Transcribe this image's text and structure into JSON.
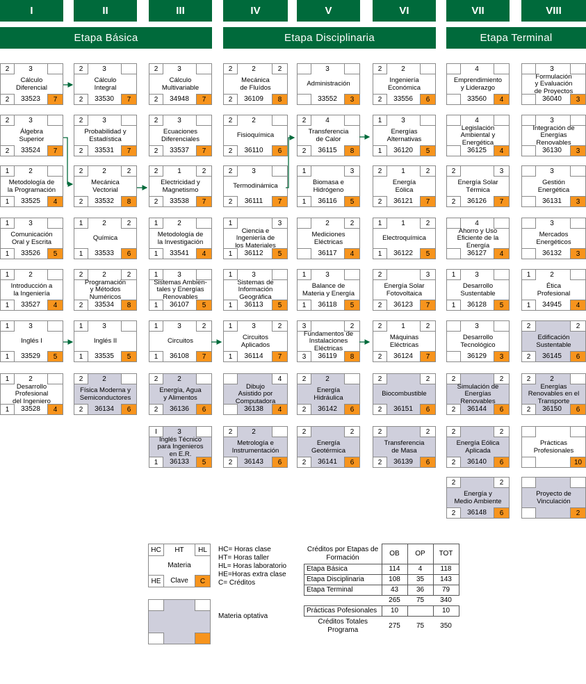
{
  "semesters": [
    "I",
    "II",
    "III",
    "IV",
    "V",
    "VI",
    "VII",
    "VIII"
  ],
  "stages": [
    "Etapa Básica",
    "Etapa Disciplinaria",
    "Etapa Terminal"
  ],
  "courses": [
    {
      "col": 0,
      "row": 0,
      "hc": "2",
      "ht": "3",
      "hl": "",
      "he": "2",
      "key": "33523",
      "cr": "7",
      "name": "Cálculo\nDiferencial",
      "opt": false
    },
    {
      "col": 0,
      "row": 1,
      "hc": "2",
      "ht": "3",
      "hl": "",
      "he": "2",
      "key": "33524",
      "cr": "7",
      "name": "Álgebra\nSuperior",
      "opt": false
    },
    {
      "col": 0,
      "row": 2,
      "hc": "1",
      "ht": "2",
      "hl": "",
      "he": "1",
      "key": "33525",
      "cr": "4",
      "name": "Metodología de\nla Programación",
      "opt": false
    },
    {
      "col": 0,
      "row": 3,
      "hc": "1",
      "ht": "3",
      "hl": "",
      "he": "1",
      "key": "33526",
      "cr": "5",
      "name": "Comunicación\nOral y Escrita",
      "opt": false
    },
    {
      "col": 0,
      "row": 4,
      "hc": "1",
      "ht": "2",
      "hl": "",
      "he": "1",
      "key": "33527",
      "cr": "4",
      "name": "Introducción a\nla Ingeniería",
      "opt": false
    },
    {
      "col": 0,
      "row": 5,
      "hc": "1",
      "ht": "3",
      "hl": "",
      "he": "1",
      "key": "33529",
      "cr": "5",
      "name": "Inglés I",
      "opt": false
    },
    {
      "col": 0,
      "row": 6,
      "hc": "1",
      "ht": "2",
      "hl": "",
      "he": "1",
      "key": "33528",
      "cr": "4",
      "name": "Desarrollo\nProfesional\ndel Ingeniero",
      "opt": false
    },
    {
      "col": 1,
      "row": 0,
      "hc": "2",
      "ht": "3",
      "hl": "",
      "he": "2",
      "key": "33530",
      "cr": "7",
      "name": "Cálculo\nIntegral",
      "opt": false
    },
    {
      "col": 1,
      "row": 1,
      "hc": "2",
      "ht": "3",
      "hl": "",
      "he": "2",
      "key": "33531",
      "cr": "7",
      "name": "Probabilidad y\nEstadística",
      "opt": false
    },
    {
      "col": 1,
      "row": 2,
      "hc": "2",
      "ht": "2",
      "hl": "2",
      "he": "2",
      "key": "33532",
      "cr": "8",
      "name": "Mecánica\nVectorial",
      "opt": false
    },
    {
      "col": 1,
      "row": 3,
      "hc": "1",
      "ht": "2",
      "hl": "2",
      "he": "1",
      "key": "33533",
      "cr": "6",
      "name": "Química",
      "opt": false
    },
    {
      "col": 1,
      "row": 4,
      "hc": "2",
      "ht": "2",
      "hl": "2",
      "he": "2",
      "key": "33534",
      "cr": "8",
      "name": "Programación\ny Métodos\nNuméricos",
      "opt": false
    },
    {
      "col": 1,
      "row": 5,
      "hc": "1",
      "ht": "3",
      "hl": "",
      "he": "1",
      "key": "33535",
      "cr": "5",
      "name": "Inglés II",
      "opt": false
    },
    {
      "col": 1,
      "row": 6,
      "hc": "2",
      "ht": "2",
      "hl": "",
      "he": "2",
      "key": "36134",
      "cr": "6",
      "name": "Física Moderna y\nSemiconductores",
      "opt": true
    },
    {
      "col": 2,
      "row": 0,
      "hc": "2",
      "ht": "3",
      "hl": "",
      "he": "2",
      "key": "34948",
      "cr": "7",
      "name": "Cálculo\nMultivariable",
      "opt": false
    },
    {
      "col": 2,
      "row": 1,
      "hc": "2",
      "ht": "3",
      "hl": "",
      "he": "2",
      "key": "33537",
      "cr": "7",
      "name": "Ecuaciones\nDiferenciales",
      "opt": false
    },
    {
      "col": 2,
      "row": 2,
      "hc": "2",
      "ht": "1",
      "hl": "2",
      "he": "2",
      "key": "33538",
      "cr": "7",
      "name": "Electricidad y\nMagnetismo",
      "opt": false
    },
    {
      "col": 2,
      "row": 3,
      "hc": "1",
      "ht": "2",
      "hl": "",
      "he": "1",
      "key": "33541",
      "cr": "4",
      "name": "Metodología de\nla Investigación",
      "opt": false
    },
    {
      "col": 2,
      "row": 4,
      "hc": "1",
      "ht": "3",
      "hl": "",
      "he": "1",
      "key": "36107",
      "cr": "5",
      "name": "Sistemas Ambien-\ntales y Energías\nRenovables",
      "opt": false
    },
    {
      "col": 2,
      "row": 5,
      "hc": "1",
      "ht": "3",
      "hl": "2",
      "he": "1",
      "key": "36108",
      "cr": "7",
      "name": "Circuitos",
      "opt": false
    },
    {
      "col": 2,
      "row": 6,
      "hc": "2",
      "ht": "2",
      "hl": "",
      "he": "2",
      "key": "36136",
      "cr": "6",
      "name": "Energía, Agua\ny Alimentos",
      "opt": true
    },
    {
      "col": 2,
      "row": 7,
      "hc": "I",
      "ht": "3",
      "hl": "",
      "he": "1",
      "key": "36133",
      "cr": "5",
      "name": "Inglés Técnico\npara Ingenieros\nen E.R.",
      "opt": true
    },
    {
      "col": 3,
      "row": 0,
      "hc": "2",
      "ht": "2",
      "hl": "2",
      "he": "2",
      "key": "36109",
      "cr": "8",
      "name": "Mecánica\nde Fluídos",
      "opt": false
    },
    {
      "col": 3,
      "row": 1,
      "hc": "2",
      "ht": "2",
      "hl": "",
      "he": "2",
      "key": "36110",
      "cr": "6",
      "name": "Fisioquímica",
      "opt": false
    },
    {
      "col": 3,
      "row": 2,
      "hc": "2",
      "ht": "3",
      "hl": "",
      "he": "2",
      "key": "36111",
      "cr": "7",
      "name": "Termodinámica",
      "opt": false
    },
    {
      "col": 3,
      "row": 3,
      "hc": "1",
      "ht": "",
      "hl": "3",
      "he": "1",
      "key": "36112",
      "cr": "5",
      "name": "Ciencia e\nIngeniería de\nlos Materiales",
      "opt": false
    },
    {
      "col": 3,
      "row": 4,
      "hc": "1",
      "ht": "3",
      "hl": "",
      "he": "1",
      "key": "36113",
      "cr": "5",
      "name": "Sistemas de\nInformación\nGeográfica",
      "opt": false
    },
    {
      "col": 3,
      "row": 5,
      "hc": "1",
      "ht": "3",
      "hl": "2",
      "he": "1",
      "key": "36114",
      "cr": "7",
      "name": "Circuitos\nAplicados",
      "opt": false
    },
    {
      "col": 3,
      "row": 6,
      "hc": "",
      "ht": "",
      "hl": "4",
      "he": "",
      "key": "36138",
      "cr": "4",
      "name": "Dibujo\nAsistido por\nComputadora",
      "opt": true
    },
    {
      "col": 3,
      "row": 7,
      "hc": "2",
      "ht": "2",
      "hl": "",
      "he": "2",
      "key": "36143",
      "cr": "6",
      "name": "Metrología e\nInstrumentación",
      "opt": true
    },
    {
      "col": 4,
      "row": 0,
      "hc": "",
      "ht": "3",
      "hl": "",
      "he": "",
      "key": "33552",
      "cr": "3",
      "name": "Administración",
      "opt": false
    },
    {
      "col": 4,
      "row": 1,
      "hc": "2",
      "ht": "4",
      "hl": "",
      "he": "2",
      "key": "36115",
      "cr": "8",
      "name": "Transferencia\nde Calor",
      "opt": false
    },
    {
      "col": 4,
      "row": 2,
      "hc": "1",
      "ht": "",
      "hl": "3",
      "he": "1",
      "key": "36116",
      "cr": "5",
      "name": "Biomasa e\nHidrógeno",
      "opt": false
    },
    {
      "col": 4,
      "row": 3,
      "hc": "",
      "ht": "2",
      "hl": "2",
      "he": "",
      "key": "36117",
      "cr": "4",
      "name": "Mediciones\nEléctricas",
      "opt": false
    },
    {
      "col": 4,
      "row": 4,
      "hc": "1",
      "ht": "3",
      "hl": "",
      "he": "1",
      "key": "36118",
      "cr": "5",
      "name": "Balance de\nMateria y Energía",
      "opt": false
    },
    {
      "col": 4,
      "row": 5,
      "hc": "3",
      "ht": "",
      "hl": "2",
      "he": "3",
      "key": "36119",
      "cr": "8",
      "name": "Fundamentos de\nInstalaciones\nEléctricas",
      "opt": false
    },
    {
      "col": 4,
      "row": 6,
      "hc": "2",
      "ht": "2",
      "hl": "",
      "he": "2",
      "key": "36142",
      "cr": "6",
      "name": "Energía\nHidráulica",
      "opt": true
    },
    {
      "col": 4,
      "row": 7,
      "hc": "2",
      "ht": "",
      "hl": "2",
      "he": "2",
      "key": "36141",
      "cr": "6",
      "name": "Energía\nGeotérmica",
      "opt": true
    },
    {
      "col": 5,
      "row": 0,
      "hc": "2",
      "ht": "2",
      "hl": "",
      "he": "2",
      "key": "33556",
      "cr": "6",
      "name": "Ingeniería\nEconómica",
      "opt": false
    },
    {
      "col": 5,
      "row": 1,
      "hc": "1",
      "ht": "3",
      "hl": "",
      "he": "1",
      "key": "36120",
      "cr": "5",
      "name": "Energías\nAlternativas",
      "opt": false
    },
    {
      "col": 5,
      "row": 2,
      "hc": "2",
      "ht": "1",
      "hl": "2",
      "he": "2",
      "key": "36121",
      "cr": "7",
      "name": "Energía\nEólica",
      "opt": false
    },
    {
      "col": 5,
      "row": 3,
      "hc": "1",
      "ht": "1",
      "hl": "2",
      "he": "1",
      "key": "36122",
      "cr": "5",
      "name": "Electroquímica",
      "opt": false
    },
    {
      "col": 5,
      "row": 4,
      "hc": "2",
      "ht": "",
      "hl": "3",
      "he": "2",
      "key": "36123",
      "cr": "7",
      "name": "Energía Solar\nFotovoltaica",
      "opt": false
    },
    {
      "col": 5,
      "row": 5,
      "hc": "2",
      "ht": "1",
      "hl": "2",
      "he": "2",
      "key": "36124",
      "cr": "7",
      "name": "Máquinas\nEléctricas",
      "opt": false
    },
    {
      "col": 5,
      "row": 6,
      "hc": "2",
      "ht": "",
      "hl": "2",
      "he": "2",
      "key": "36151",
      "cr": "6",
      "name": "Biocombustible",
      "opt": true
    },
    {
      "col": 5,
      "row": 7,
      "hc": "2",
      "ht": "",
      "hl": "2",
      "he": "2",
      "key": "36139",
      "cr": "6",
      "name": "Transferencia\nde Masa",
      "opt": true
    },
    {
      "col": 6,
      "row": 0,
      "hc": "",
      "ht": "4",
      "hl": "",
      "he": "",
      "key": "33560",
      "cr": "4",
      "name": "Emprendimiento\ny Liderazgo",
      "opt": false
    },
    {
      "col": 6,
      "row": 1,
      "hc": "",
      "ht": "4",
      "hl": "",
      "he": "",
      "key": "36125",
      "cr": "4",
      "name": "Legislación\nAmbiental y\nEnergética",
      "opt": false
    },
    {
      "col": 6,
      "row": 2,
      "hc": "2",
      "ht": "",
      "hl": "3",
      "he": "2",
      "key": "36126",
      "cr": "7",
      "name": "Energía Solar\nTérmica",
      "opt": false
    },
    {
      "col": 6,
      "row": 3,
      "hc": "",
      "ht": "4",
      "hl": "",
      "he": "",
      "key": "36127",
      "cr": "4",
      "name": "Ahorro y Uso\nEficiente de la\nEnergía",
      "opt": false
    },
    {
      "col": 6,
      "row": 4,
      "hc": "1",
      "ht": "3",
      "hl": "",
      "he": "1",
      "key": "36128",
      "cr": "5",
      "name": "Desarrollo\nSustentable",
      "opt": false
    },
    {
      "col": 6,
      "row": 5,
      "hc": "",
      "ht": "3",
      "hl": "",
      "he": "",
      "key": "36129",
      "cr": "3",
      "name": "Desarrollo\nTecnológico",
      "opt": false
    },
    {
      "col": 6,
      "row": 6,
      "hc": "2",
      "ht": "",
      "hl": "2",
      "he": "2",
      "key": "36144",
      "cr": "6",
      "name": "Simulación de\nEnergías\nRenovables",
      "opt": true
    },
    {
      "col": 6,
      "row": 7,
      "hc": "2",
      "ht": "",
      "hl": "2",
      "he": "2",
      "key": "36140",
      "cr": "6",
      "name": "Energía Eólica\nAplicada",
      "opt": true
    },
    {
      "col": 6,
      "row": 8,
      "hc": "2",
      "ht": "",
      "hl": "2",
      "he": "2",
      "key": "36148",
      "cr": "6",
      "name": "Energía y\nMedio Ambiente",
      "opt": true
    },
    {
      "col": 7,
      "row": 0,
      "hc": "",
      "ht": "3",
      "hl": "",
      "he": "",
      "key": "36040",
      "cr": "3",
      "name": "Formulación\ny Evaluación\nde Proyectos",
      "opt": false
    },
    {
      "col": 7,
      "row": 1,
      "hc": "",
      "ht": "3",
      "hl": "",
      "he": "",
      "key": "36130",
      "cr": "3",
      "name": "Integración de\nEnergías\nRenovables",
      "opt": false
    },
    {
      "col": 7,
      "row": 2,
      "hc": "",
      "ht": "3",
      "hl": "",
      "he": "",
      "key": "36131",
      "cr": "3",
      "name": "Gestión\nEnergética",
      "opt": false
    },
    {
      "col": 7,
      "row": 3,
      "hc": "",
      "ht": "3",
      "hl": "",
      "he": "",
      "key": "36132",
      "cr": "3",
      "name": "Mercados\nEnergéticos",
      "opt": false
    },
    {
      "col": 7,
      "row": 4,
      "hc": "1",
      "ht": "2",
      "hl": "",
      "he": "1",
      "key": "34945",
      "cr": "4",
      "name": "Ética\nProfesional",
      "opt": false
    },
    {
      "col": 7,
      "row": 5,
      "hc": "2",
      "ht": "",
      "hl": "2",
      "he": "2",
      "key": "36145",
      "cr": "6",
      "name": "Edificación\nSustentable",
      "opt": true
    },
    {
      "col": 7,
      "row": 6,
      "hc": "2",
      "ht": "2",
      "hl": "",
      "he": "2",
      "key": "36150",
      "cr": "6",
      "name": "Energías\nRenovables en el\nTransporte",
      "opt": true
    },
    {
      "col": 7,
      "row": 7,
      "hc": "",
      "ht": "",
      "hl": "",
      "he": "",
      "key": "",
      "cr": "10",
      "name": "Prácticas\nProfesionales",
      "opt": false
    },
    {
      "col": 7,
      "row": 8,
      "hc": "",
      "ht": "",
      "hl": "",
      "he": "",
      "key": "",
      "cr": "2",
      "name": "Proyecto de\nVinculación",
      "opt": true
    }
  ],
  "legend": {
    "hc": "HC",
    "ht": "HT",
    "hl": "HL",
    "he": "HE",
    "name": "Materia",
    "key": "Clave",
    "cr": "C",
    "definitions": [
      "HC= Horas clase",
      "HT= Horas taller",
      "HL= Horas laboratorio",
      "HE=Horas extra clase",
      "C= Créditos"
    ],
    "optional_label": "Materia optativa"
  },
  "credits_table": {
    "title": "Créditos por Etapas de\nFormación",
    "headers": [
      "OB",
      "OP",
      "TOT"
    ],
    "rows": [
      {
        "label": "Etapa Básica",
        "ob": "114",
        "op": "4",
        "tot": "118"
      },
      {
        "label": "Etapa Disciplinaria",
        "ob": "108",
        "op": "35",
        "tot": "143"
      },
      {
        "label": "Etapa Terminal",
        "ob": "43",
        "op": "36",
        "tot": "79"
      }
    ],
    "subtotal": {
      "ob": "265",
      "op": "75",
      "tot": "340"
    },
    "practicas": {
      "label": "Prácticas Pofesionales",
      "ob": "10",
      "op": "",
      "tot": "10"
    },
    "total": {
      "label": "Créditos Totales\nPrograma",
      "ob": "275",
      "op": "75",
      "tot": "350"
    }
  }
}
